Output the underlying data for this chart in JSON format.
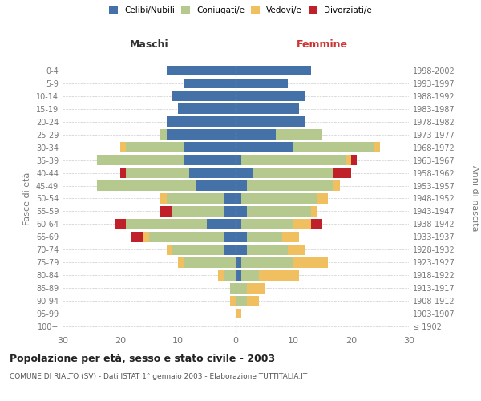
{
  "age_groups": [
    "100+",
    "95-99",
    "90-94",
    "85-89",
    "80-84",
    "75-79",
    "70-74",
    "65-69",
    "60-64",
    "55-59",
    "50-54",
    "45-49",
    "40-44",
    "35-39",
    "30-34",
    "25-29",
    "20-24",
    "15-19",
    "10-14",
    "5-9",
    "0-4"
  ],
  "birth_years": [
    "≤ 1902",
    "1903-1907",
    "1908-1912",
    "1913-1917",
    "1918-1922",
    "1923-1927",
    "1928-1932",
    "1933-1937",
    "1938-1942",
    "1943-1947",
    "1948-1952",
    "1953-1957",
    "1958-1962",
    "1963-1967",
    "1968-1972",
    "1973-1977",
    "1978-1982",
    "1983-1987",
    "1988-1992",
    "1993-1997",
    "1998-2002"
  ],
  "maschi": {
    "celibi": [
      0,
      0,
      0,
      0,
      0,
      0,
      2,
      2,
      5,
      2,
      2,
      7,
      8,
      9,
      9,
      12,
      12,
      10,
      11,
      9,
      12
    ],
    "coniugati": [
      0,
      0,
      0,
      1,
      2,
      9,
      9,
      13,
      14,
      9,
      10,
      17,
      11,
      15,
      10,
      1,
      0,
      0,
      0,
      0,
      0
    ],
    "vedovi": [
      0,
      0,
      1,
      0,
      1,
      1,
      1,
      1,
      0,
      0,
      1,
      0,
      0,
      0,
      1,
      0,
      0,
      0,
      0,
      0,
      0
    ],
    "divorziati": [
      0,
      0,
      0,
      0,
      0,
      0,
      0,
      2,
      2,
      2,
      0,
      0,
      1,
      0,
      0,
      0,
      0,
      0,
      0,
      0,
      0
    ]
  },
  "femmine": {
    "nubili": [
      0,
      0,
      0,
      0,
      1,
      1,
      2,
      2,
      1,
      2,
      1,
      2,
      3,
      1,
      10,
      7,
      12,
      11,
      12,
      9,
      13
    ],
    "coniugate": [
      0,
      0,
      2,
      2,
      3,
      9,
      7,
      6,
      9,
      11,
      13,
      15,
      14,
      18,
      14,
      8,
      0,
      0,
      0,
      0,
      0
    ],
    "vedove": [
      0,
      1,
      2,
      3,
      7,
      6,
      3,
      3,
      3,
      1,
      2,
      1,
      0,
      1,
      1,
      0,
      0,
      0,
      0,
      0,
      0
    ],
    "divorziate": [
      0,
      0,
      0,
      0,
      0,
      0,
      0,
      0,
      2,
      0,
      0,
      0,
      3,
      1,
      0,
      0,
      0,
      0,
      0,
      0,
      0
    ]
  },
  "colors": {
    "celibi": "#4472a8",
    "coniugati": "#b5c98e",
    "vedovi": "#f0c060",
    "divorziati": "#c0202a"
  },
  "xlim": 30,
  "title": "Popolazione per età, sesso e stato civile - 2003",
  "subtitle": "COMUNE DI RIALTO (SV) - Dati ISTAT 1° gennaio 2003 - Elaborazione TUTTITALIA.IT",
  "ylabel": "Fasce di età",
  "right_ylabel": "Anni di nascita",
  "xlabel_left": "Maschi",
  "xlabel_right": "Femmine",
  "legend_labels": [
    "Celibi/Nubili",
    "Coniugati/e",
    "Vedovi/e",
    "Divorziati/e"
  ],
  "bg_color": "#ffffff",
  "grid_color": "#cccccc",
  "spine_color": "#cccccc",
  "tick_color": "#777777",
  "maschi_label_color": "#333333",
  "femmine_label_color": "#cc3333"
}
